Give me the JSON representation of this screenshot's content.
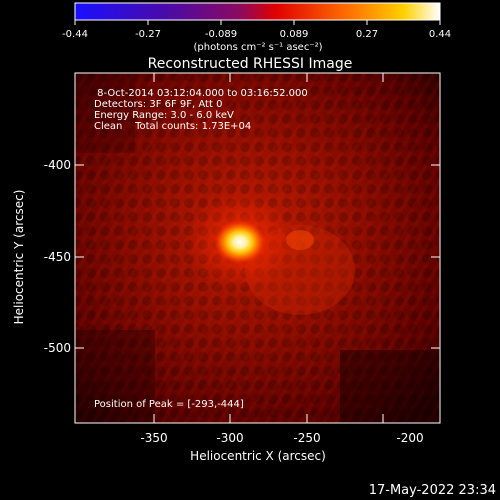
{
  "colorbar": {
    "ticks": [
      "-0.44",
      "-0.27",
      "-0.089",
      "0.089",
      "0.27",
      "0.44"
    ],
    "units": "(photons cm⁻² s⁻¹ asec⁻²)",
    "stops": [
      "#1a10ff",
      "#5a0aa8",
      "#7a0c8a",
      "#ff0000",
      "#ff6a00",
      "#ffd000",
      "#ffffff"
    ]
  },
  "title": "Reconstructed RHESSI Image",
  "info": {
    "line1": " 8-Oct-2014 03:12:04.000 to 03:16:52.000",
    "line2": "Detectors: 3F 6F 9F, Att 0",
    "line3": "Energy Range: 3.0 - 6.0 keV",
    "line4": "Clean    Total counts: 1.73E+04",
    "peak": "Position of Peak = [-293,-444]"
  },
  "axes": {
    "xlabel": "Heliocentric X (arcsec)",
    "ylabel": "Heliocentric Y (arcsec)",
    "xticks": [
      "-350",
      "-300",
      "-250",
      "-200"
    ],
    "yticks": [
      "-400",
      "-450",
      "-500"
    ]
  },
  "timestamp": "17-May-2022 23:34",
  "colors": {
    "background": "#000000",
    "image_dark": "#3a0000",
    "image_mid": "#b31800",
    "source_core": "#ffffff"
  }
}
